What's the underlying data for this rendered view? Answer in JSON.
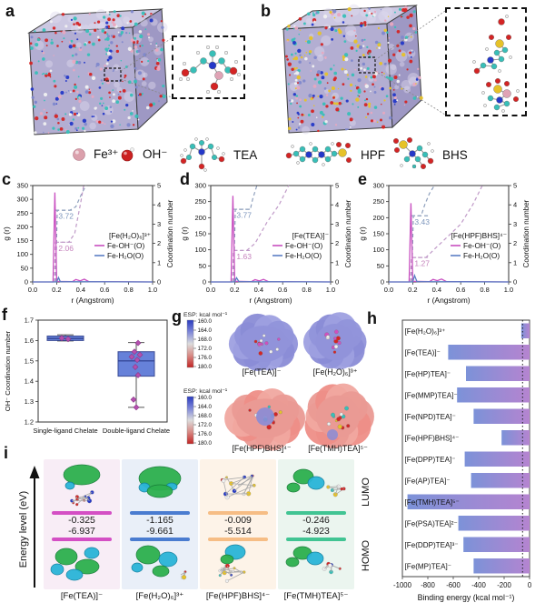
{
  "panels": {
    "a": "a",
    "b": "b",
    "c": "c",
    "d": "d",
    "e": "e",
    "f": "f",
    "g": "g",
    "h": "h",
    "i": "i"
  },
  "legend": {
    "items": [
      {
        "icon": "fe-sphere-icon",
        "label": "Fe³⁺"
      },
      {
        "icon": "oh-sphere-icon",
        "label": "OH⁻"
      },
      {
        "icon": "tea-molecule-icon",
        "label": "TEA"
      },
      {
        "icon": "hpf-molecule-icon",
        "label": "HPF"
      },
      {
        "icon": "bhs-molecule-icon",
        "label": "BHS"
      }
    ]
  },
  "esp": {
    "header": "ESP: kcal mol⁻¹",
    "scale_ticks": [
      "160.0",
      "164.0",
      "168.0",
      "172.0",
      "176.0",
      "180.0"
    ],
    "top_molecules": [
      "[Fe(TEA)]⁻",
      "[Fe(H₂O)₆]³⁺"
    ],
    "bottom_molecules": [
      "[Fe(HPF)BHS]⁴⁻",
      "[Fe(TMH)TEA]⁵⁻"
    ]
  },
  "energy": {
    "axis_label": "Energy level (eV)",
    "lumo_label": "LUMO",
    "homo_label": "HOMO",
    "columns": [
      {
        "label": "[Fe(TEA)]⁻",
        "lumo": "-0.325",
        "homo": "-6.937",
        "bar_color": "#d44fc4",
        "bg": "#f8edf6"
      },
      {
        "label": "[Fe(H₂O)₆]³⁺",
        "lumo": "-1.165",
        "homo": "-9.661",
        "bar_color": "#4a7cd0",
        "bg": "#e9eff8"
      },
      {
        "label": "[Fe(HPF)BHS]⁴⁻",
        "lumo": "-0.009",
        "homo": "-5.514",
        "bar_color": "#f6bd85",
        "bg": "#fdf3e8"
      },
      {
        "label": "[Fe(TMH)TEA]⁵⁻",
        "lumo": "-0.246",
        "homo": "-4.923",
        "bar_color": "#41c493",
        "bg": "#ebf5ef"
      }
    ]
  },
  "colors": {
    "rdf_pink": "#c84fc0",
    "rdf_blue": "#5b7fc4",
    "cn_dash_blue": "#8fa0bd",
    "cn_dash_pink": "#c09ac8",
    "ann_blue": "#7d96bd",
    "ann_pink": "#c583bd",
    "bar_gradient_start": "#7c92d8",
    "bar_gradient_end": "#b584d0",
    "box_fill": "#5a77d6",
    "box_edge": "#2b3c8c",
    "point_magenta": "#b54fb0"
  },
  "chart_data": [
    {
      "panel": "c",
      "type": "line",
      "title": "[Fe(H₂O)₆]³⁺",
      "xlabel": "r (Angstrom)",
      "ylabel": "g (r)",
      "y2label": "Coordination number",
      "xlim": [
        0.0,
        1.0
      ],
      "xticks": [
        "0.0",
        "0.2",
        "0.4",
        "0.6",
        "0.8",
        "1.0"
      ],
      "ylim": [
        0,
        350
      ],
      "ytick_step": 50,
      "y2lim": [
        0,
        5
      ],
      "series": [
        {
          "name": "Fe-OH⁻(O)",
          "color_key": "pink",
          "points": [
            [
              0,
              0
            ],
            [
              0.17,
              0
            ],
            [
              0.185,
              325
            ],
            [
              0.2,
              2
            ],
            [
              0.33,
              1
            ],
            [
              0.36,
              9
            ],
            [
              0.395,
              4
            ],
            [
              0.43,
              10
            ],
            [
              0.47,
              1
            ],
            [
              1,
              0
            ]
          ]
        },
        {
          "name": "Fe-H₂O(O)",
          "color_key": "blue",
          "points": [
            [
              0,
              0
            ],
            [
              0.2,
              0
            ],
            [
              0.215,
              16
            ],
            [
              0.23,
              1
            ],
            [
              1,
              0
            ]
          ]
        }
      ],
      "cn_curves": [
        {
          "color_key": "blue",
          "points": [
            [
              0.19,
              0
            ],
            [
              0.205,
              3.72
            ],
            [
              0.31,
              3.72
            ],
            [
              0.36,
              3.9
            ],
            [
              0.41,
              4.6
            ],
            [
              0.445,
              5
            ]
          ]
        },
        {
          "color_key": "pink",
          "points": [
            [
              0.18,
              0
            ],
            [
              0.19,
              2.06
            ],
            [
              0.3,
              2.06
            ],
            [
              0.35,
              2.5
            ],
            [
              0.4,
              4.1
            ],
            [
              0.425,
              5
            ]
          ]
        }
      ],
      "cn_annotations": [
        {
          "label": "3.72",
          "value": 3.72,
          "color_key": "blue"
        },
        {
          "label": "2.06",
          "value": 2.06,
          "color_key": "pink"
        }
      ]
    },
    {
      "panel": "d",
      "type": "line",
      "title": "[Fe(TEA)]⁻",
      "xlabel": "r (Angstrom)",
      "ylabel": "g (r)",
      "y2label": "Coordination number",
      "xlim": [
        0.0,
        1.0
      ],
      "xticks": [
        "0.0",
        "0.2",
        "0.4",
        "0.6",
        "0.8",
        "1.0"
      ],
      "ylim": [
        0,
        300
      ],
      "ytick_step": 50,
      "y2lim": [
        0,
        5
      ],
      "series": [
        {
          "name": "Fe-OH⁻(O)",
          "color_key": "pink",
          "points": [
            [
              0,
              0
            ],
            [
              0.17,
              0
            ],
            [
              0.185,
              268
            ],
            [
              0.2,
              2
            ],
            [
              0.34,
              1
            ],
            [
              0.37,
              7
            ],
            [
              0.405,
              3
            ],
            [
              0.44,
              8
            ],
            [
              0.48,
              1
            ],
            [
              1,
              0
            ]
          ]
        },
        {
          "name": "Fe-H₂O(O)",
          "color_key": "blue",
          "points": [
            [
              0,
              0
            ],
            [
              0.2,
              0
            ],
            [
              0.215,
              13
            ],
            [
              0.235,
              1
            ],
            [
              1,
              0
            ]
          ]
        }
      ],
      "cn_curves": [
        {
          "color_key": "blue",
          "points": [
            [
              0.19,
              0
            ],
            [
              0.205,
              3.77
            ],
            [
              0.33,
              3.77
            ],
            [
              0.35,
              4.3
            ],
            [
              0.385,
              5
            ]
          ]
        },
        {
          "color_key": "pink",
          "points": [
            [
              0.18,
              0
            ],
            [
              0.19,
              1.63
            ],
            [
              0.3,
              1.63
            ],
            [
              0.37,
              2.0
            ],
            [
              0.47,
              3.1
            ],
            [
              0.57,
              4.0
            ],
            [
              0.65,
              5
            ]
          ]
        }
      ],
      "cn_annotations": [
        {
          "label": "3.77",
          "value": 3.77,
          "color_key": "blue"
        },
        {
          "label": "1.63",
          "value": 1.63,
          "color_key": "pink"
        }
      ]
    },
    {
      "panel": "e",
      "type": "line",
      "title": "[Fe(HPF)BHS]⁴⁻",
      "xlabel": "r (Angstrom)",
      "ylabel": "g (r)",
      "y2label": "Coordination number",
      "xlim": [
        0.0,
        1.0
      ],
      "xticks": [
        "0.0",
        "0.2",
        "0.4",
        "0.6",
        "0.8",
        "1.0"
      ],
      "ylim": [
        0,
        300
      ],
      "ytick_step": 50,
      "y2lim": [
        0,
        5
      ],
      "series": [
        {
          "name": "Fe-OH⁻(O)",
          "color_key": "pink",
          "points": [
            [
              0,
              0
            ],
            [
              0.17,
              0
            ],
            [
              0.185,
              245
            ],
            [
              0.2,
              2
            ],
            [
              0.34,
              1
            ],
            [
              0.37,
              8
            ],
            [
              0.405,
              4
            ],
            [
              0.44,
              9
            ],
            [
              0.48,
              1
            ],
            [
              1,
              0
            ]
          ]
        },
        {
          "name": "Fe-H₂O(O)",
          "color_key": "blue",
          "points": [
            [
              0,
              0
            ],
            [
              0.2,
              0
            ],
            [
              0.215,
              20
            ],
            [
              0.235,
              1
            ],
            [
              1,
              0
            ]
          ]
        }
      ],
      "cn_curves": [
        {
          "color_key": "blue",
          "points": [
            [
              0.19,
              0
            ],
            [
              0.205,
              3.43
            ],
            [
              0.27,
              3.43
            ],
            [
              0.3,
              4.0
            ],
            [
              0.34,
              4.6
            ],
            [
              0.38,
              5
            ]
          ]
        },
        {
          "color_key": "pink",
          "points": [
            [
              0.18,
              0
            ],
            [
              0.19,
              1.27
            ],
            [
              0.31,
              1.27
            ],
            [
              0.38,
              1.7
            ],
            [
              0.5,
              2.4
            ],
            [
              0.6,
              3.0
            ],
            [
              0.7,
              4.0
            ],
            [
              0.78,
              5
            ]
          ]
        }
      ],
      "cn_annotations": [
        {
          "label": "3.43",
          "value": 3.43,
          "color_key": "blue"
        },
        {
          "label": "1.27",
          "value": 1.27,
          "color_key": "pink"
        }
      ]
    },
    {
      "panel": "f",
      "type": "box",
      "ylabel": "OH⁻ Coordination number",
      "ylim": [
        1.2,
        1.7
      ],
      "yticks": [
        1.2,
        1.3,
        1.4,
        1.5,
        1.6,
        1.7
      ],
      "categories": [
        "Single-ligand Chelate",
        "Double-ligand Chelate"
      ],
      "boxes": [
        {
          "q1": 1.6,
          "q3": 1.622,
          "median": 1.61,
          "whisker_low": 1.598,
          "whisker_high": 1.628,
          "points": [
            1.612,
            1.607
          ]
        },
        {
          "q1": 1.425,
          "q3": 1.545,
          "median": 1.5,
          "whisker_low": 1.272,
          "whisker_high": 1.59,
          "points": [
            1.588,
            1.545,
            1.53,
            1.52,
            1.505,
            1.47,
            1.43,
            1.31,
            1.272
          ]
        }
      ],
      "jitter": [
        [
          -4,
          3
        ],
        [
          2,
          -2,
          4,
          -5,
          1,
          -1,
          2,
          -3,
          0
        ]
      ]
    },
    {
      "panel": "h",
      "type": "bar",
      "orientation": "horizontal",
      "xlabel": "Binding energy (kcal mol⁻¹)",
      "xlim": [
        -1000,
        0
      ],
      "xticks": [
        -1000,
        -800,
        -600,
        -400,
        -200,
        0
      ],
      "reference_line": -55,
      "categories": [
        "[Fe(H₂O)₆]³⁺",
        "[Fe(TEA)]⁻",
        "[Fe(HP)TEA]⁻",
        "[Fe(MMP)TEA]⁻",
        "[Fe(NPD)TEA]⁻",
        "[Fe(HPF)BHS]⁴⁻",
        "[Fe(DPP)TEA]⁻",
        "[Fe(AP)TEA]⁻",
        "[Fe(TMH)TEA]⁵⁻",
        "[Fe(PSA)TEA]²⁻",
        "[Fe(DDP)TEA]³⁻",
        "[Fe(MP)TEA]⁻"
      ],
      "values": [
        -65,
        -640,
        -500,
        -570,
        -440,
        -220,
        -510,
        -460,
        -960,
        -560,
        -520,
        -440
      ]
    },
    {
      "panel": "i",
      "type": "table",
      "title": "Frontier orbital energy levels",
      "ylabel": "Energy level (eV)",
      "columns": [
        "[Fe(TEA)]⁻",
        "[Fe(H₂O)₆]³⁺",
        "[Fe(HPF)BHS]⁴⁻",
        "[Fe(TMH)TEA]⁵⁻"
      ],
      "lumo_eV": [
        -0.325,
        -1.165,
        -0.009,
        -0.246
      ],
      "homo_eV": [
        -6.937,
        -9.661,
        -5.514,
        -4.923
      ]
    }
  ]
}
